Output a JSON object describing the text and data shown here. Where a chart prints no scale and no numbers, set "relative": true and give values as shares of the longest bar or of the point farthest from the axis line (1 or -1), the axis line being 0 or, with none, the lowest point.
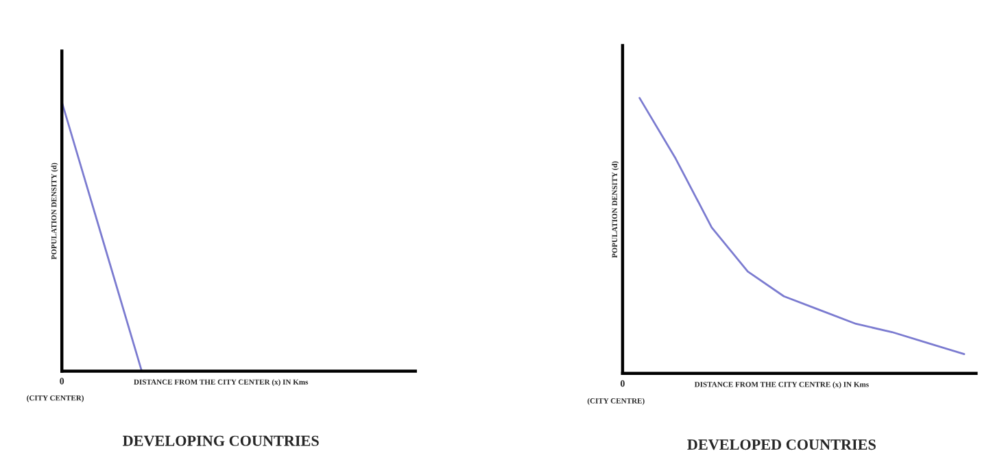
{
  "chart_data": [
    {
      "type": "line",
      "title": "DEVELOPING COUNTRIES",
      "xlabel": "DISTANCE FROM THE CITY CENTER (x) IN Kms",
      "ylabel": "POPULATION DENSITY (d)",
      "relative": true,
      "annotations": [
        "0",
        "(CITY CENTER)"
      ],
      "categories": [
        null,
        null,
        null,
        null,
        null,
        null,
        null,
        null,
        null
      ],
      "series": [
        {
          "color": "#7b7bd0",
          "values": [
            1,
            0.5,
            0,
            null,
            null,
            null,
            null,
            null,
            null
          ]
        }
      ]
    },
    {
      "type": "line",
      "title": "DEVELOPED COUNTRIES",
      "xlabel": "DISTANCE FROM THE CITY CENTRE (x) IN Kms",
      "ylabel": "POPULATION DENSITY (d)",
      "relative": true,
      "annotations": [
        "0",
        "(CITY CENTRE)"
      ],
      "categories": [
        null,
        null,
        null,
        null,
        null,
        null,
        null,
        null,
        null,
        null
      ],
      "series": [
        {
          "color": "#7b7bd0",
          "values": [
            1,
            0.78,
            0.53,
            0.37,
            0.28,
            0.23,
            0.18,
            0.15,
            0.11,
            0.07
          ]
        }
      ]
    }
  ]
}
